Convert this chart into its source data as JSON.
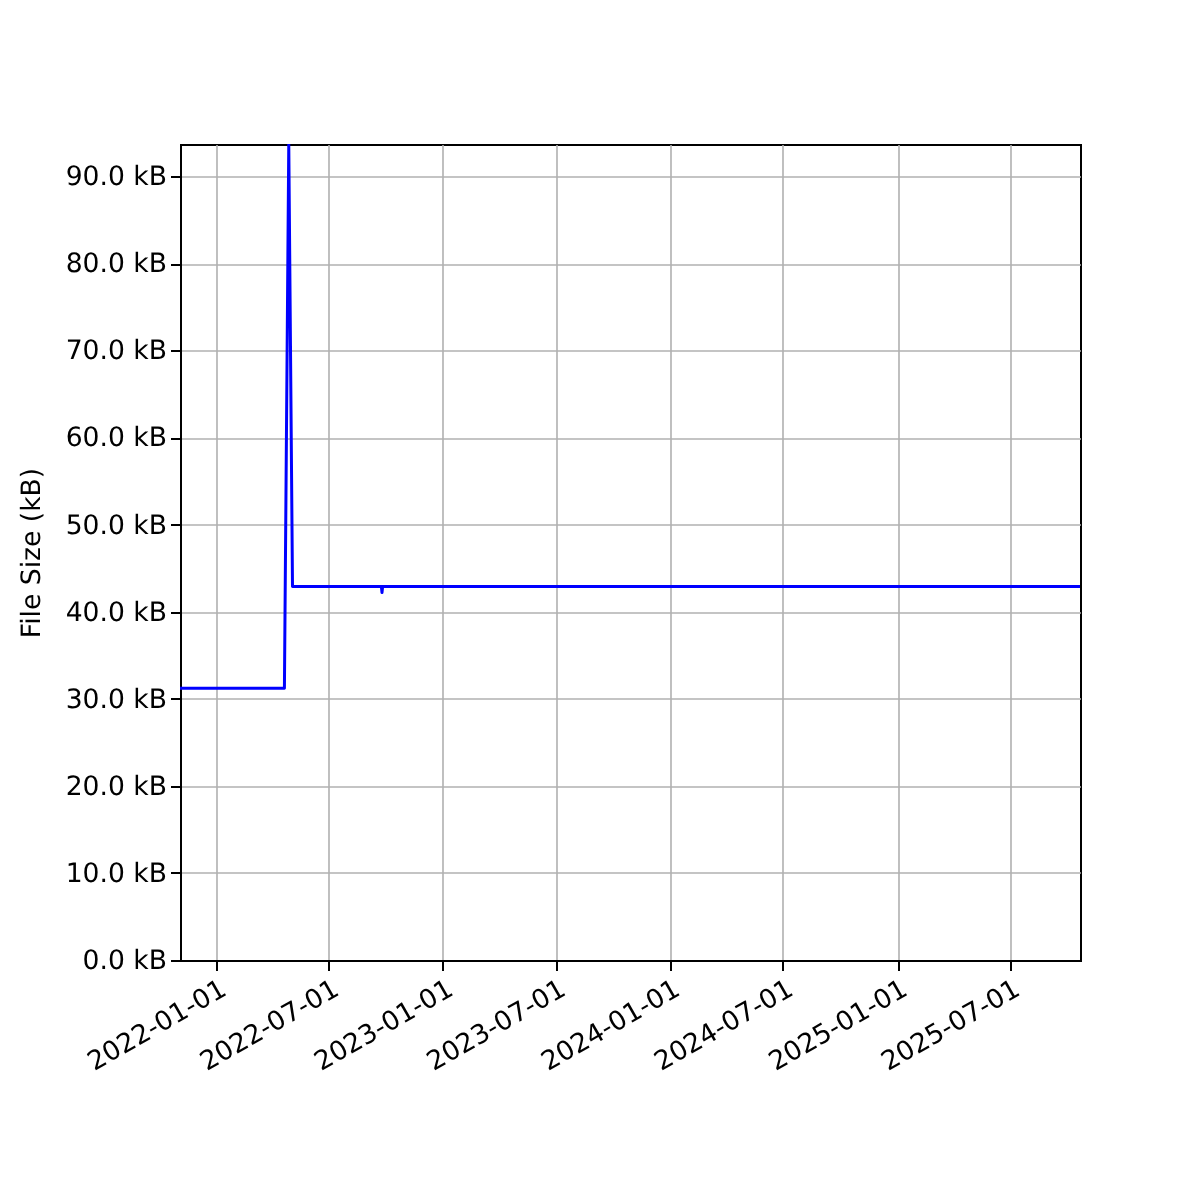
{
  "chart_data": {
    "type": "line",
    "ylabel": "File Size (kB)",
    "x": [
      "2021-11-04",
      "2022-04-21",
      "2022-04-28",
      "2022-05-04",
      "2022-09-24",
      "2022-09-25",
      "2022-09-26",
      "2025-10-22"
    ],
    "series": [
      {
        "color": "#0000ff",
        "values": [
          31.2,
          31.2,
          93.7,
          42.9,
          42.9,
          42.2,
          42.9,
          42.9
        ]
      }
    ],
    "xlim": [
      "2021-11-04",
      "2025-10-22"
    ],
    "ylim": [
      0,
      93.7
    ],
    "xticks": [
      "2022-01-01",
      "2022-07-01",
      "2023-01-01",
      "2023-07-01",
      "2024-01-01",
      "2024-07-01",
      "2025-01-01",
      "2025-07-01"
    ],
    "yticks": [
      {
        "value": 0,
        "label": "0.0 kB"
      },
      {
        "value": 10,
        "label": "10.0 kB"
      },
      {
        "value": 20,
        "label": "20.0 kB"
      },
      {
        "value": 30,
        "label": "30.0 kB"
      },
      {
        "value": 40,
        "label": "40.0 kB"
      },
      {
        "value": 50,
        "label": "50.0 kB"
      },
      {
        "value": 60,
        "label": "60.0 kB"
      },
      {
        "value": 70,
        "label": "70.0 kB"
      },
      {
        "value": 80,
        "label": "80.0 kB"
      },
      {
        "value": 90,
        "label": "90.0 kB"
      }
    ],
    "grid": true
  }
}
